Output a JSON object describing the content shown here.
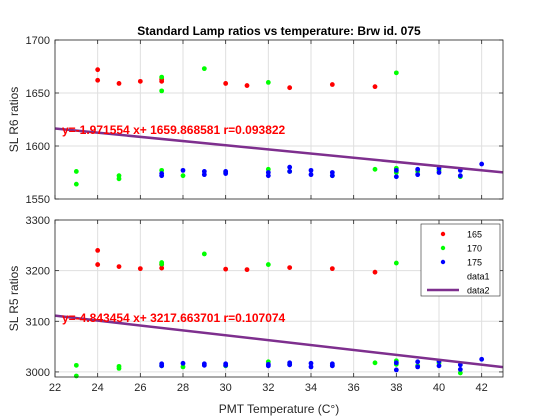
{
  "chart_data": [
    {
      "type": "scatter",
      "title": "Standard Lamp ratios vs temperature: Brw id. 075",
      "xlabel": "",
      "ylabel": "SL R6 ratios",
      "xlim": [
        22,
        43
      ],
      "ylim": [
        1550,
        1700
      ],
      "xticks": [
        22,
        24,
        26,
        28,
        30,
        32,
        34,
        36,
        38,
        40,
        42
      ],
      "xtick_labels_shown": false,
      "yticks": [
        1550,
        1600,
        1650,
        1700
      ],
      "grid": true,
      "legend": "none",
      "annotation": "y=-1.971554 x+ 1659.868581 r=0.093822",
      "series": [
        {
          "name": "165",
          "color": "#ff0000",
          "marker": "dot",
          "points": [
            [
              24,
              1672
            ],
            [
              24,
              1662
            ],
            [
              25,
              1659
            ],
            [
              26,
              1661
            ],
            [
              27,
              1663
            ],
            [
              27,
              1661
            ],
            [
              30,
              1659
            ],
            [
              31,
              1657
            ],
            [
              33,
              1655
            ],
            [
              35,
              1658
            ],
            [
              37,
              1656
            ]
          ]
        },
        {
          "name": "170",
          "color": "#00ff00",
          "marker": "dot",
          "points": [
            [
              23,
              1576
            ],
            [
              23,
              1564
            ],
            [
              25,
              1572
            ],
            [
              25,
              1569
            ],
            [
              27,
              1665
            ],
            [
              27,
              1652
            ],
            [
              27,
              1577
            ],
            [
              28,
              1572
            ],
            [
              29,
              1673
            ],
            [
              30,
              1575
            ],
            [
              32,
              1660
            ],
            [
              32,
              1578
            ],
            [
              33,
              1576
            ],
            [
              35,
              1572
            ],
            [
              37,
              1578
            ],
            [
              38,
              1669
            ],
            [
              38,
              1579
            ],
            [
              38,
              1575
            ],
            [
              39,
              1576
            ],
            [
              40,
              1577
            ],
            [
              41,
              1571
            ]
          ]
        },
        {
          "name": "175",
          "color": "#0000ff",
          "marker": "dot",
          "points": [
            [
              27,
              1572
            ],
            [
              27,
              1574
            ],
            [
              28,
              1577
            ],
            [
              29,
              1576
            ],
            [
              29,
              1573
            ],
            [
              30,
              1574
            ],
            [
              30,
              1576
            ],
            [
              32,
              1575
            ],
            [
              32,
              1572
            ],
            [
              33,
              1580
            ],
            [
              33,
              1576
            ],
            [
              34,
              1577
            ],
            [
              34,
              1573
            ],
            [
              35,
              1575
            ],
            [
              35,
              1572
            ],
            [
              38,
              1577
            ],
            [
              38,
              1571
            ],
            [
              39,
              1578
            ],
            [
              39,
              1573
            ],
            [
              40,
              1579
            ],
            [
              40,
              1575
            ],
            [
              41,
              1577
            ],
            [
              41,
              1572
            ],
            [
              42,
              1583
            ]
          ]
        },
        {
          "name": "data2",
          "color": "#7e2f8e",
          "type": "line",
          "points": [
            [
              22,
              1616.5
            ],
            [
              43,
              1575.1
            ]
          ]
        }
      ]
    },
    {
      "type": "scatter",
      "title": "",
      "xlabel": "PMT Temperature (C°)",
      "ylabel": "SL R5 ratios",
      "xlim": [
        22,
        43
      ],
      "ylim": [
        2990,
        3300
      ],
      "xticks": [
        22,
        24,
        26,
        28,
        30,
        32,
        34,
        36,
        38,
        40,
        42
      ],
      "yticks": [
        3000,
        3100,
        3200,
        3300
      ],
      "grid": true,
      "legend": "top-right",
      "legend_entries": [
        "165",
        "170",
        "175",
        "data1",
        "data2"
      ],
      "annotation": "y=-4.843454 x+ 3217.663701 r=0.107074",
      "series": [
        {
          "name": "165",
          "color": "#ff0000",
          "marker": "dot",
          "points": [
            [
              24,
              3240
            ],
            [
              24,
              3212
            ],
            [
              25,
              3208
            ],
            [
              26,
              3204
            ],
            [
              27,
              3212
            ],
            [
              27,
              3205
            ],
            [
              30,
              3203
            ],
            [
              31,
              3202
            ],
            [
              33,
              3206
            ],
            [
              35,
              3204
            ],
            [
              37,
              3197
            ]
          ]
        },
        {
          "name": "170",
          "color": "#00ff00",
          "marker": "dot",
          "points": [
            [
              23,
              3013
            ],
            [
              23,
              2992
            ],
            [
              25,
              3011
            ],
            [
              25,
              3007
            ],
            [
              27,
              3216
            ],
            [
              27,
              3213
            ],
            [
              27,
              3012
            ],
            [
              28,
              3010
            ],
            [
              29,
              3233
            ],
            [
              30,
              3012
            ],
            [
              32,
              3212
            ],
            [
              32,
              3020
            ],
            [
              33,
              3015
            ],
            [
              35,
              3013
            ],
            [
              37,
              3018
            ],
            [
              38,
              3215
            ],
            [
              38,
              3022
            ],
            [
              38,
              3015
            ],
            [
              39,
              3012
            ],
            [
              40,
              3018
            ],
            [
              41,
              2998
            ]
          ]
        },
        {
          "name": "175",
          "color": "#0000ff",
          "marker": "dot",
          "points": [
            [
              27,
              3012
            ],
            [
              27,
              3016
            ],
            [
              28,
              3017
            ],
            [
              29,
              3016
            ],
            [
              29,
              3013
            ],
            [
              30,
              3016
            ],
            [
              30,
              3013
            ],
            [
              32,
              3015
            ],
            [
              32,
              3012
            ],
            [
              33,
              3018
            ],
            [
              33,
              3014
            ],
            [
              34,
              3017
            ],
            [
              34,
              3010
            ],
            [
              35,
              3016
            ],
            [
              35,
              3012
            ],
            [
              38,
              3018
            ],
            [
              38,
              3004
            ],
            [
              39,
              3020
            ],
            [
              39,
              3010
            ],
            [
              40,
              3021
            ],
            [
              40,
              3012
            ],
            [
              41,
              3014
            ],
            [
              41,
              3005
            ],
            [
              42,
              3025
            ]
          ]
        },
        {
          "name": "data2",
          "color": "#7e2f8e",
          "type": "line",
          "points": [
            [
              22,
              3111.1
            ],
            [
              43,
              3009.4
            ]
          ]
        }
      ]
    }
  ]
}
